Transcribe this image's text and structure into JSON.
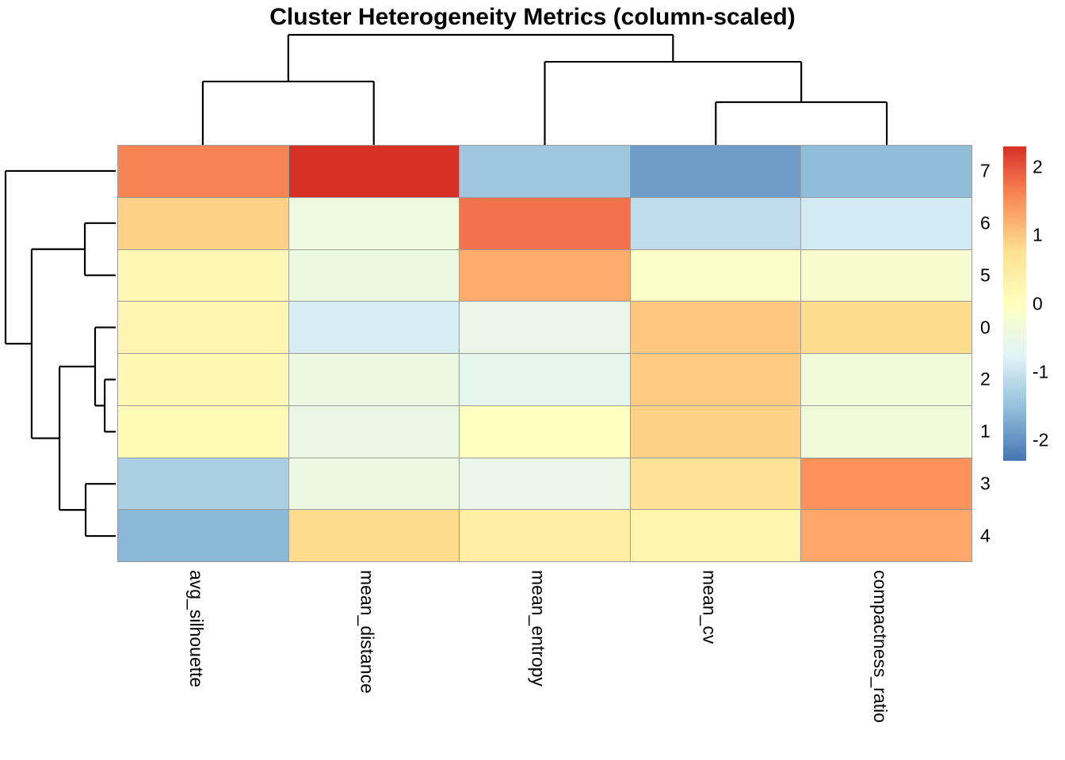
{
  "title": "Cluster Heterogeneity Metrics (column-scaled)",
  "chart_data": {
    "type": "heatmap",
    "title": "Cluster Heterogeneity Metrics (column-scaled)",
    "columns": [
      "avg_silhouette",
      "mean_distance",
      "mean_entropy",
      "mean_cv",
      "compactness_ratio"
    ],
    "rows": [
      "7",
      "6",
      "5",
      "0",
      "2",
      "1",
      "3",
      "4"
    ],
    "values": [
      [
        1.6,
        2.3,
        -1.4,
        -1.9,
        -1.55
      ],
      [
        0.9,
        -0.4,
        1.75,
        -1.1,
        -0.9
      ],
      [
        0.2,
        -0.45,
        1.25,
        -0.1,
        -0.2
      ],
      [
        0.25,
        -0.85,
        -0.55,
        1.0,
        0.8
      ],
      [
        0.2,
        -0.45,
        -0.6,
        0.95,
        -0.35
      ],
      [
        0.15,
        -0.5,
        0.0,
        0.9,
        -0.35
      ],
      [
        -1.3,
        -0.45,
        -0.55,
        0.7,
        1.5
      ],
      [
        -1.6,
        0.8,
        0.45,
        0.3,
        1.3
      ]
    ],
    "color_scale": {
      "name": "RdYlBu-reversed",
      "domain": [
        -2.3,
        2.3
      ],
      "stops": [
        "#4575B4",
        "#91BFDB",
        "#E0F3F8",
        "#FFFFBF",
        "#FEE090",
        "#FC8D59",
        "#D73027"
      ]
    },
    "legend": {
      "ticks": [
        "2",
        "1",
        "0",
        "-1",
        "-2"
      ],
      "tick_values": [
        2,
        1,
        0,
        -1,
        -2
      ]
    },
    "col_dendrogram": {
      "h": 1.0,
      "children": [
        {
          "h": 0.576,
          "children": [
            "avg_silhouette",
            "mean_distance"
          ]
        },
        {
          "h": 0.755,
          "children": [
            "mean_entropy",
            {
              "h": 0.388,
              "children": [
                "mean_cv",
                "compactness_ratio"
              ]
            }
          ]
        }
      ]
    },
    "row_dendrogram": {
      "h": 1.0,
      "children": [
        "7",
        {
          "h": 0.763,
          "children": [
            {
              "h": 0.28,
              "children": [
                "6",
                "5"
              ]
            },
            {
              "h": 0.51,
              "children": [
                {
                  "h": 0.187,
                  "children": [
                    "0",
                    {
                      "h": 0.1,
                      "children": [
                        "2",
                        "1"
                      ]
                    }
                  ]
                },
                {
                  "h": 0.273,
                  "children": [
                    "3",
                    "4"
                  ]
                }
              ]
            }
          ]
        }
      ]
    },
    "grid": true,
    "legend_position": "right",
    "colors": {
      "cell_border": "#9c9c9c",
      "dendrogram_line": "#000000",
      "label_text": "#000000",
      "background": "#ffffff"
    }
  }
}
